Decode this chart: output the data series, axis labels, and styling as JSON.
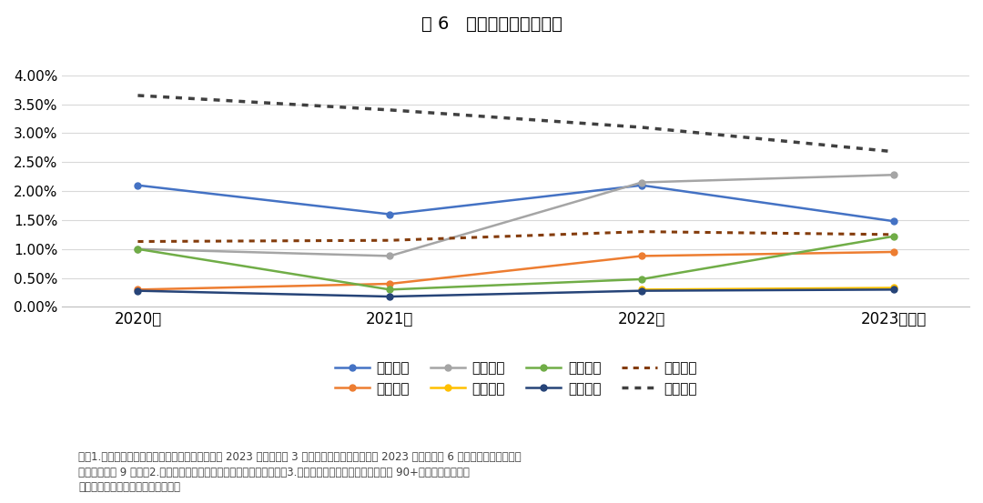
{
  "title": "图 6   样本企业不良率对比",
  "x_labels": [
    "2020年",
    "2021年",
    "2022年",
    "2023年一期"
  ],
  "x_positions": [
    0,
    1,
    2,
    3
  ],
  "series": [
    {
      "name": "安吉租赁",
      "values": [
        0.021,
        0.016,
        0.021,
        0.0148
      ],
      "color": "#4472C4",
      "linestyle": "solid",
      "linewidth": 1.8,
      "marker": "o",
      "markersize": 5
    },
    {
      "name": "奔驰租赁",
      "values": [
        0.003,
        0.004,
        0.0088,
        0.0095
      ],
      "color": "#ED7D31",
      "linestyle": "solid",
      "linewidth": 1.8,
      "marker": "o",
      "markersize": 5
    },
    {
      "name": "广汽租赁",
      "values": [
        0.01,
        0.0088,
        0.0215,
        0.0228
      ],
      "color": "#A5A5A5",
      "linestyle": "solid",
      "linewidth": 1.8,
      "marker": "o",
      "markersize": 5
    },
    {
      "name": "先锋租赁",
      "values": [
        null,
        null,
        0.003,
        0.0033
      ],
      "color": "#FFC000",
      "linestyle": "solid",
      "linewidth": 1.8,
      "marker": "o",
      "markersize": 5
    },
    {
      "name": "一汽租赁",
      "values": [
        0.01,
        0.003,
        0.0048,
        0.0122
      ],
      "color": "#70AD47",
      "linestyle": "solid",
      "linewidth": 1.8,
      "marker": "o",
      "markersize": 5
    },
    {
      "name": "智慧租赁",
      "values": [
        0.0028,
        0.0018,
        0.0028,
        0.003
      ],
      "color": "#264478",
      "linestyle": "solid",
      "linewidth": 1.8,
      "marker": "o",
      "markersize": 5
    },
    {
      "name": "狮桥租赁",
      "values": [
        0.0113,
        0.0115,
        0.013,
        0.0125
      ],
      "color": "#843C0C",
      "linestyle": "dotted",
      "linewidth": 2.2,
      "marker": null,
      "markersize": 0
    },
    {
      "name": "易鑫租赁",
      "values": [
        0.0365,
        0.034,
        0.031,
        0.0268
      ],
      "color": "#404040",
      "linestyle": "dotted",
      "linewidth": 2.5,
      "marker": null,
      "markersize": 0
    }
  ],
  "ylim": [
    0.0,
    0.04
  ],
  "yticks": [
    0.0,
    0.005,
    0.01,
    0.015,
    0.02,
    0.025,
    0.03,
    0.035,
    0.04
  ],
  "ytick_labels": [
    "0.00%",
    "0.50%",
    "1.00%",
    "1.50%",
    "2.00%",
    "2.50%",
    "3.00%",
    "3.50%",
    "4.00%"
  ],
  "background_color": "#FFFFFF",
  "grid_color": "#D9D9D9",
  "note_line1": "注：1.奔驰租赁、广汽租赁、先锋租赁、易鑫租赁 2023 年一期数为 3 月末；一汽租赁、智慧租赁 2023 年一期数为 6 月末；安吉租赁和狮桥",
  "note_line2": "租赁一期数为 9 月末。2.一汽租赁的不良率为零售汽车业务的不良率。3.易鑫租赁未披露不良率，本文采用 90+逾期率作为不良率",
  "note_line3": "资料来源：公开资料，联合资信整理"
}
